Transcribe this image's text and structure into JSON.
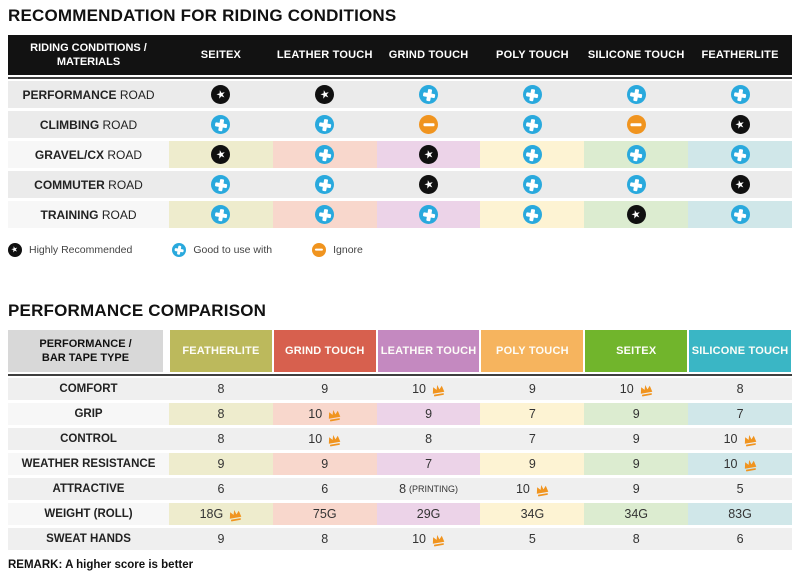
{
  "colors": {
    "star_bg": "#101010",
    "plus_bg": "#29a9dd",
    "minus_bg": "#f0941f",
    "crown": "#f0941f",
    "row_gray_t1": "#ebebeb",
    "row_gray_t2": "#efefef",
    "column_tints": [
      "#eeeccd",
      "#f8d7cc",
      "#ecd3e8",
      "#fdf3d3",
      "#dcecd0",
      "#d0e7e9"
    ]
  },
  "chart_data": [
    {
      "type": "table",
      "title": "RECOMMENDATION FOR RIDING CONDITIONS",
      "corner_header": [
        "RIDING CONDITIONS /",
        "MATERIALS"
      ],
      "columns": [
        "SEITEX",
        "LEATHER TOUCH",
        "GRIND TOUCH",
        "POLY TOUCH",
        "SILICONE TOUCH",
        "FEATHERLITE"
      ],
      "rows": [
        {
          "label": [
            "PERFORMANCE",
            "ROAD"
          ],
          "tinted": false,
          "icons": [
            "star",
            "star",
            "plus",
            "plus",
            "plus",
            "plus"
          ]
        },
        {
          "label": [
            "CLIMBING",
            "ROAD"
          ],
          "tinted": false,
          "icons": [
            "plus",
            "plus",
            "minus",
            "plus",
            "minus",
            "star"
          ]
        },
        {
          "label": [
            "GRAVEL/CX",
            "ROAD"
          ],
          "tinted": true,
          "icons": [
            "star",
            "plus",
            "star",
            "plus",
            "plus",
            "plus"
          ]
        },
        {
          "label": [
            "COMMUTER",
            "ROAD"
          ],
          "tinted": false,
          "icons": [
            "plus",
            "plus",
            "star",
            "plus",
            "plus",
            "star"
          ]
        },
        {
          "label": [
            "TRAINING",
            "ROAD"
          ],
          "tinted": true,
          "icons": [
            "plus",
            "plus",
            "plus",
            "plus",
            "star",
            "plus"
          ]
        }
      ],
      "legend": [
        {
          "icon": "star",
          "label": "Highly Recommended"
        },
        {
          "icon": "plus",
          "label": "Good to use with"
        },
        {
          "icon": "minus",
          "label": "Ignore"
        }
      ]
    },
    {
      "type": "table",
      "title": "PERFORMANCE COMPARISON",
      "corner_header": [
        "PERFORMANCE /",
        "BAR TAPE TYPE"
      ],
      "columns": [
        {
          "label": "FEATHERLITE",
          "color": "#bcb95c"
        },
        {
          "label": "GRIND TOUCH",
          "color": "#d7604e"
        },
        {
          "label": "LEATHER TOUCH",
          "color": "#c489c0"
        },
        {
          "label": "POLY TOUCH",
          "color": "#f6b45e"
        },
        {
          "label": "SEITEX",
          "color": "#71b52c"
        },
        {
          "label": "SILICONE TOUCH",
          "color": "#3ab6c5"
        }
      ],
      "rows": [
        {
          "label": "COMFORT",
          "tinted": false,
          "cells": [
            {
              "value": "8"
            },
            {
              "value": "9"
            },
            {
              "value": "10",
              "crown": true
            },
            {
              "value": "9"
            },
            {
              "value": "10",
              "crown": true
            },
            {
              "value": "8"
            }
          ]
        },
        {
          "label": "GRIP",
          "tinted": true,
          "cells": [
            {
              "value": "8"
            },
            {
              "value": "10",
              "crown": true
            },
            {
              "value": "9"
            },
            {
              "value": "7"
            },
            {
              "value": "9"
            },
            {
              "value": "7"
            }
          ]
        },
        {
          "label": "CONTROL",
          "tinted": false,
          "cells": [
            {
              "value": "8"
            },
            {
              "value": "10",
              "crown": true
            },
            {
              "value": "8"
            },
            {
              "value": "7"
            },
            {
              "value": "9"
            },
            {
              "value": "10",
              "crown": true
            }
          ]
        },
        {
          "label": "WEATHER RESISTANCE",
          "tinted": true,
          "cells": [
            {
              "value": "9"
            },
            {
              "value": "9"
            },
            {
              "value": "7"
            },
            {
              "value": "9"
            },
            {
              "value": "9"
            },
            {
              "value": "10",
              "crown": true
            }
          ]
        },
        {
          "label": "ATTRACTIVE",
          "tinted": false,
          "cells": [
            {
              "value": "6"
            },
            {
              "value": "6"
            },
            {
              "value": "8",
              "suffix": "(PRINTING)"
            },
            {
              "value": "10",
              "crown": true
            },
            {
              "value": "9"
            },
            {
              "value": "5"
            }
          ]
        },
        {
          "label": "WEIGHT (ROLL)",
          "tinted": true,
          "cells": [
            {
              "value": "18G",
              "crown": true
            },
            {
              "value": "75G"
            },
            {
              "value": "29G"
            },
            {
              "value": "34G"
            },
            {
              "value": "34G"
            },
            {
              "value": "83G"
            }
          ]
        },
        {
          "label": "SWEAT HANDS",
          "tinted": false,
          "cells": [
            {
              "value": "9"
            },
            {
              "value": "8"
            },
            {
              "value": "10",
              "crown": true
            },
            {
              "value": "5"
            },
            {
              "value": "8"
            },
            {
              "value": "6"
            }
          ]
        }
      ],
      "remark": "REMARK: A higher score is better"
    }
  ]
}
